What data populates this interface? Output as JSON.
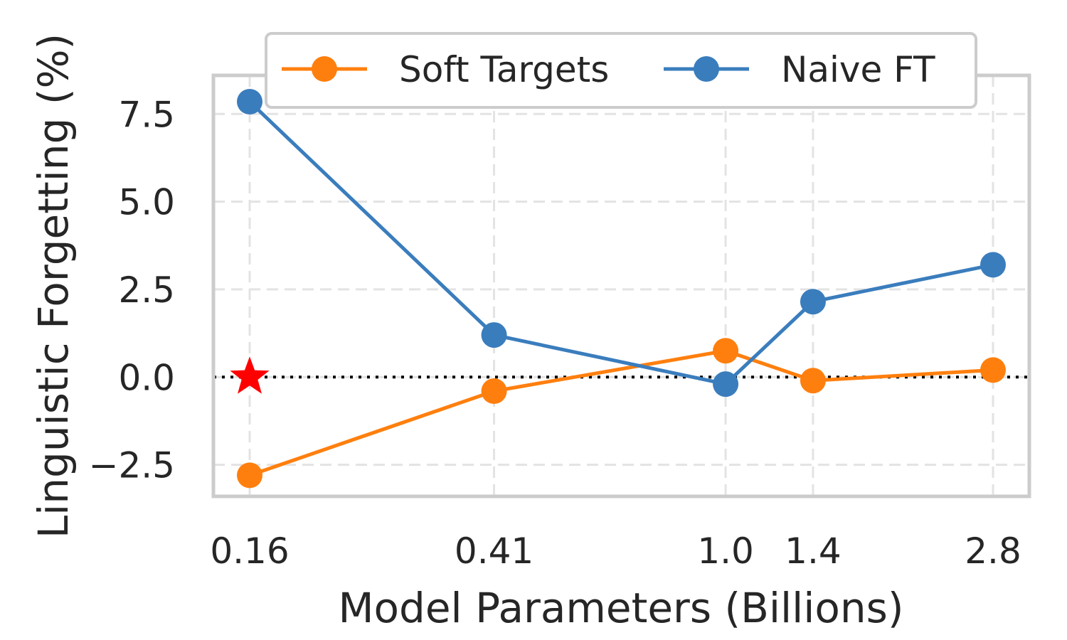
{
  "chart_data": {
    "type": "line",
    "xlabel": "Model Parameters (Billions)",
    "ylabel": "Linguistic Forgetting (%)",
    "x": [
      0.16,
      0.41,
      1.0,
      1.4,
      2.8
    ],
    "x_tick_labels": [
      "0.16",
      "0.41",
      "1.0",
      "1.4",
      "2.8"
    ],
    "x_scale": "log",
    "y_ticks": [
      -2.5,
      0.0,
      2.5,
      5.0,
      7.5
    ],
    "y_tick_labels": [
      "−2.5",
      "0.0",
      "2.5",
      "5.0",
      "7.5"
    ],
    "ylim": [
      -3.4,
      8.6
    ],
    "grid": true,
    "legend_position": "top",
    "reference_line": {
      "y": 0,
      "style": "dotted",
      "color": "#000000"
    },
    "highlight_marker": {
      "x": 0.16,
      "y": 0,
      "shape": "star",
      "color": "#ff0000"
    },
    "series": [
      {
        "name": "Soft Targets",
        "color": "#ff7f0e",
        "values": [
          -2.8,
          -0.4,
          0.75,
          -0.1,
          0.2
        ]
      },
      {
        "name": "Naive FT",
        "color": "#3a7dbd",
        "values": [
          7.85,
          1.2,
          -0.2,
          2.15,
          3.2
        ]
      }
    ]
  }
}
